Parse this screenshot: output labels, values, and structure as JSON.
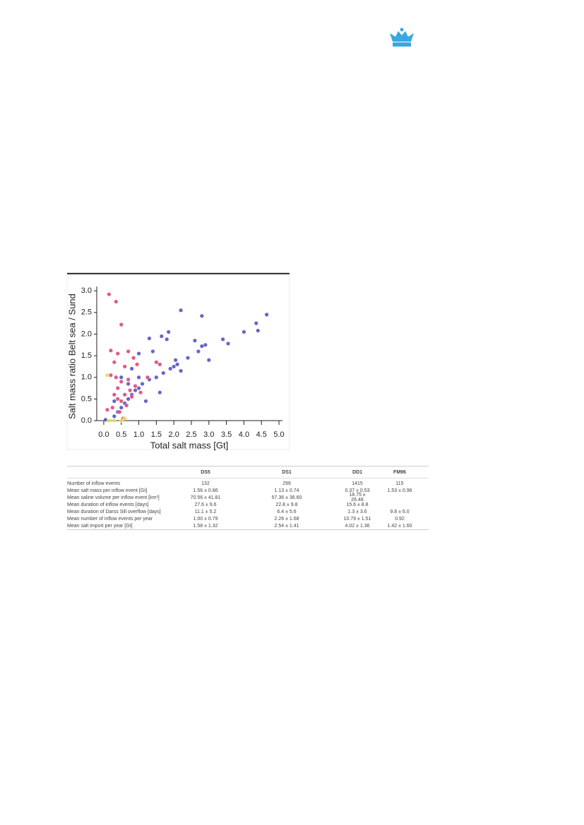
{
  "chart_data": {
    "type": "scatter",
    "x_label": "Total salt mass [Gt]",
    "y_label": "Salt mass ratio Belt sea / Sund",
    "xlim": [
      -0.2,
      5.1
    ],
    "ylim": [
      0,
      3.1
    ],
    "xticks": [
      {
        "value": 0,
        "label": "0.0"
      },
      0.5,
      {
        "value": 1,
        "label": "1.0"
      },
      1.5,
      {
        "value": 2,
        "label": "2.0"
      },
      2.5,
      {
        "value": 3,
        "label": "3.0"
      },
      3.5,
      {
        "value": 4,
        "label": "4.0"
      },
      4.5,
      {
        "value": 5,
        "label": "5.0"
      }
    ],
    "yticks": [
      {
        "value": 0,
        "label": "0.0"
      },
      0.5,
      {
        "value": 1,
        "label": "1.0"
      },
      1.5,
      {
        "value": 2,
        "label": "2.0"
      },
      2.5,
      {
        "value": 3,
        "label": "3.0"
      }
    ],
    "series": [
      {
        "color": "#5555c4",
        "x": [
          2.2,
          2.8,
          4.65,
          4.35,
          4.4,
          4.0,
          3.4,
          3.55,
          2.6,
          1.85,
          1.65,
          1.3,
          1.8,
          2.8,
          2.9,
          2.7,
          3.0,
          2.4,
          1.0,
          1.4,
          2.1,
          2.0,
          1.9,
          2.2,
          1.7,
          1.5,
          1.3,
          1.1,
          1.0,
          0.9,
          0.8,
          0.7,
          0.6,
          0.5,
          0.4,
          0.3,
          0.05,
          0.8,
          0.5,
          0.3,
          1.2,
          1.6,
          2.05,
          1.0,
          0.7
        ],
        "values": [
          2.55,
          2.42,
          2.45,
          2.25,
          2.08,
          2.05,
          1.88,
          1.78,
          1.85,
          2.05,
          1.95,
          1.9,
          1.88,
          1.72,
          1.75,
          1.6,
          1.4,
          1.45,
          1.55,
          1.6,
          1.3,
          1.25,
          1.2,
          1.15,
          1.1,
          1.0,
          0.95,
          0.85,
          0.75,
          0.7,
          0.6,
          0.5,
          0.4,
          0.3,
          0.2,
          0.1,
          0.02,
          1.2,
          1.0,
          0.45,
          0.45,
          0.65,
          1.4,
          1.0,
          0.85
        ]
      },
      {
        "color": "#e0467c",
        "x": [
          0.15,
          0.35,
          0.5,
          0.2,
          0.4,
          0.7,
          0.85,
          0.3,
          0.6,
          0.2,
          0.35,
          0.5,
          0.7,
          0.9,
          0.4,
          0.6,
          0.8,
          0.3,
          0.5,
          0.25,
          0.45,
          0.65,
          1.05,
          1.25,
          1.5,
          1.6,
          0.95,
          0.1,
          0.55,
          0.4,
          0.75
        ],
        "values": [
          2.92,
          2.75,
          2.22,
          1.62,
          1.55,
          1.6,
          1.45,
          1.35,
          1.25,
          1.05,
          1.0,
          0.9,
          0.95,
          0.8,
          0.75,
          0.6,
          0.55,
          0.6,
          0.45,
          0.3,
          0.2,
          0.35,
          0.65,
          1.0,
          1.35,
          1.3,
          1.3,
          0.25,
          0.05,
          0.5,
          0.7
        ]
      },
      {
        "color": "#e6e04a",
        "x": [
          0.1,
          0.3,
          0.5,
          0.6,
          0.15
        ],
        "values": [
          1.05,
          0.0,
          0.0,
          0.05,
          0.0
        ]
      }
    ]
  },
  "table": {
    "columns": [
      "DS5",
      "DS1",
      "DD1",
      "FM96"
    ],
    "rows": [
      {
        "label": "Number of inflow events",
        "cells": [
          132,
          296,
          1415,
          115
        ]
      },
      {
        "label": "Mean salt mass per inflow event [Gt]",
        "cells": [
          "1.56 ± 0.86",
          "1.13 ± 0.74",
          "0.37 ± 0.53",
          "1.53 ± 0.96"
        ]
      },
      {
        "label": "Mean saline volume per inflow event [km³]",
        "cells": [
          "70.56 ± 41.81",
          "57.36 ± 36.60",
          "18.75 ± 26.48",
          null
        ]
      },
      {
        "label": "Mean duration of inflow events [days]",
        "cells": [
          "27.6 ± 9.6",
          "22.8 ± 9.8",
          "15.6 ± 8.8",
          null
        ]
      },
      {
        "label": "Mean duration of Darss Sill overflow [days]",
        "cells": [
          "11.1 ± 5.2",
          "6.4 ± 5.6",
          "1.3 ± 3.6",
          "9.8 ± 6.0"
        ]
      },
      {
        "label": "Mean number of inflow events per year",
        "cells": [
          "1.00 ± 0.79",
          "2.26 ± 1.68",
          "10.79 ± 1.51",
          "0.92"
        ]
      },
      {
        "label": "Mean salt import per year [Gt]",
        "cells": [
          "1.58 ± 1.32",
          "2.54 ± 1.41",
          "4.02 ± 1.36",
          "1.42 ± 1.60"
        ]
      }
    ]
  }
}
